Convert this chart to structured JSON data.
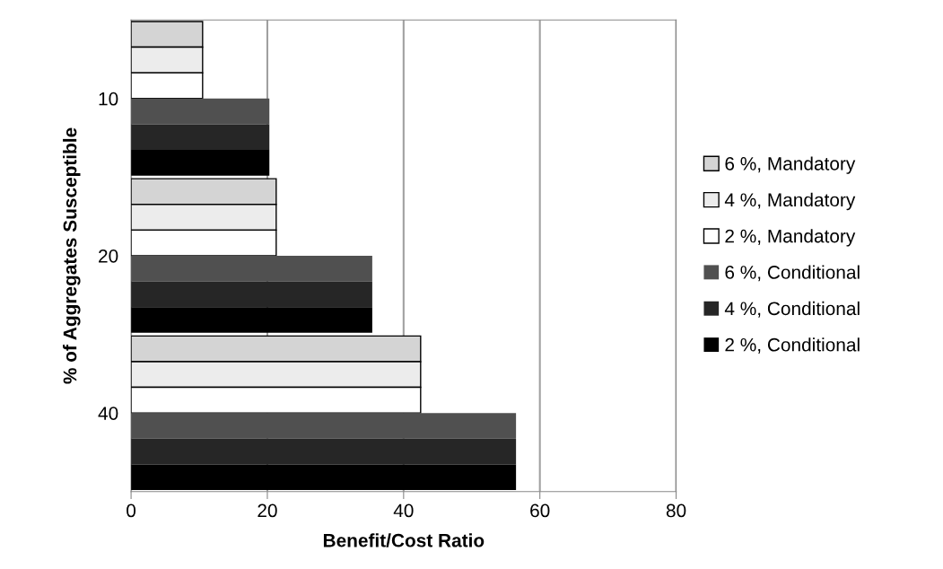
{
  "chart_data": {
    "type": "bar",
    "orientation": "horizontal",
    "xlabel": "Benefit/Cost Ratio",
    "ylabel": "% of Aggregates Susceptible",
    "categories": [
      "10",
      "20",
      "40"
    ],
    "series": [
      {
        "name": "6 %, Mandatory",
        "color": "#d4d4d4",
        "values": [
          10.5,
          21.3,
          42.5
        ]
      },
      {
        "name": "4 %, Mandatory",
        "color": "#ececec",
        "values": [
          10.5,
          21.3,
          42.5
        ]
      },
      {
        "name": "2 %, Mandatory",
        "color": "#ffffff",
        "values": [
          10.5,
          21.3,
          42.5
        ]
      },
      {
        "name": "6 %, Conditional",
        "color": "#505050",
        "values": [
          20.3,
          35.4,
          56.5
        ]
      },
      {
        "name": "4 %, Conditional",
        "color": "#262626",
        "values": [
          20.3,
          35.4,
          56.5
        ]
      },
      {
        "name": "2 %, Conditional",
        "color": "#000000",
        "values": [
          20.3,
          35.4,
          56.5
        ]
      }
    ],
    "xlim": [
      0,
      80
    ],
    "xticks": [
      0,
      20,
      40,
      60,
      80
    ],
    "grid": "x",
    "legend": "right"
  }
}
